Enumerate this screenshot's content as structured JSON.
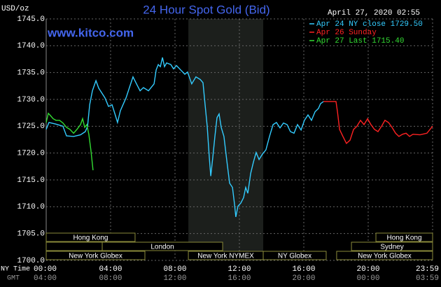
{
  "chart_data": {
    "type": "line",
    "title": "24 Hour Spot Gold (Bid)",
    "website": "www.kitco.com",
    "y_label": "USD/oz",
    "timestamp": "April 27, 2020 02:55",
    "x_row_label": "NY Time",
    "x2_row_label": "GMT",
    "background": "#000000",
    "title_color": "#4466ee",
    "grid": true,
    "xlim": [
      0,
      24
    ],
    "ylim": [
      1700,
      1745
    ],
    "yticks": [
      {
        "value": 1700,
        "label": "1700.0"
      },
      {
        "value": 1705,
        "label": "1705.0"
      },
      {
        "value": 1710,
        "label": "1710.0"
      },
      {
        "value": 1715,
        "label": "1715.0"
      },
      {
        "value": 1720,
        "label": "1720.0"
      },
      {
        "value": 1725,
        "label": "1725.0"
      },
      {
        "value": 1730,
        "label": "1730.0"
      },
      {
        "value": 1735,
        "label": "1735.0"
      },
      {
        "value": 1740,
        "label": "1740.0"
      },
      {
        "value": 1745,
        "label": "1745.0"
      }
    ],
    "xticks": [
      {
        "value": 0,
        "label": "00:00"
      },
      {
        "value": 4,
        "label": "04:00"
      },
      {
        "value": 8,
        "label": "08:00"
      },
      {
        "value": 12,
        "label": "12:00"
      },
      {
        "value": 16,
        "label": "16:00"
      },
      {
        "value": 20,
        "label": "20:00"
      },
      {
        "value": 24,
        "label": "23:59"
      }
    ],
    "x2ticks": [
      {
        "value": 0,
        "label": "04:00"
      },
      {
        "value": 4,
        "label": "08:00"
      },
      {
        "value": 8,
        "label": "12:00"
      },
      {
        "value": 12,
        "label": "16:00"
      },
      {
        "value": 16,
        "label": "20:00"
      },
      {
        "value": 20,
        "label": "00:00"
      },
      {
        "value": 24,
        "label": "03:59"
      }
    ],
    "sessions": [
      {
        "label": "Hong Kong",
        "start": 0,
        "end": 5.52
      },
      {
        "label": "London",
        "start": 3.48,
        "end": 10.96
      },
      {
        "label": "New York Globex",
        "start": 0,
        "end": 6.13
      },
      {
        "label": "New York NYMEX",
        "start": 8.83,
        "end": 13.48
      },
      {
        "label": "NY Globex",
        "start": 13.48,
        "end": 17.39
      },
      {
        "label": "Hong Kong",
        "start": 20.48,
        "end": 24
      },
      {
        "label": "Sydney",
        "start": 18.96,
        "end": 24
      },
      {
        "label": "New York Globex",
        "start": 18.04,
        "end": 24
      }
    ],
    "series": [
      {
        "name": "Apr 24 NY close 1729.50",
        "color": "#33ccff",
        "x": [
          0.0,
          0.17,
          0.61,
          1.04,
          1.26,
          1.7,
          2.13,
          2.43,
          2.57,
          2.7,
          2.87,
          3.09,
          3.26,
          3.65,
          3.87,
          4.09,
          4.3,
          4.43,
          4.61,
          4.96,
          5.17,
          5.39,
          5.61,
          5.83,
          6.04,
          6.35,
          6.7,
          6.83,
          6.96,
          7.09,
          7.22,
          7.35,
          7.48,
          7.74,
          7.91,
          8.09,
          8.35,
          8.61,
          8.78,
          9.04,
          9.3,
          9.57,
          9.74,
          9.87,
          10.0,
          10.13,
          10.22,
          10.35,
          10.48,
          10.61,
          10.74,
          10.87,
          11.04,
          11.22,
          11.39,
          11.57,
          11.7,
          11.78,
          11.91,
          12.09,
          12.26,
          12.39,
          12.52,
          12.7,
          12.87,
          13.04,
          13.22,
          13.43,
          13.65,
          13.87,
          14.09,
          14.3,
          14.52,
          14.74,
          14.96,
          15.17,
          15.39,
          15.61,
          15.83,
          16.04,
          16.26,
          16.48,
          16.7,
          16.91,
          17.04,
          17.22
        ],
        "values": [
          1724.4,
          1725.7,
          1725.4,
          1725.0,
          1723.2,
          1723.1,
          1723.4,
          1724.0,
          1725.0,
          1729.0,
          1731.6,
          1733.5,
          1732.1,
          1730.3,
          1728.7,
          1729.0,
          1727.0,
          1725.7,
          1727.9,
          1730.3,
          1732.2,
          1734.2,
          1732.9,
          1731.6,
          1732.2,
          1731.6,
          1732.9,
          1735.5,
          1736.5,
          1736.1,
          1737.8,
          1736.1,
          1736.8,
          1736.5,
          1735.7,
          1736.3,
          1735.5,
          1734.7,
          1735.1,
          1732.9,
          1734.2,
          1733.7,
          1733.1,
          1729.0,
          1725.0,
          1719.2,
          1715.7,
          1719.2,
          1723.1,
          1726.6,
          1727.3,
          1724.8,
          1723.1,
          1718.5,
          1714.4,
          1713.6,
          1710.4,
          1708.1,
          1710.1,
          1710.7,
          1711.7,
          1713.6,
          1712.5,
          1716.2,
          1718.3,
          1720.1,
          1718.8,
          1719.8,
          1720.6,
          1723.1,
          1725.3,
          1725.7,
          1724.7,
          1725.6,
          1725.3,
          1724.0,
          1723.7,
          1725.3,
          1724.3,
          1726.1,
          1727.1,
          1726.1,
          1727.7,
          1728.3,
          1729.2,
          1729.6
        ]
      },
      {
        "name": "Apr 26 Sunday",
        "color": "#ff2222",
        "x": [
          17.22,
          18.0,
          18.09,
          18.22,
          18.43,
          18.65,
          18.87,
          19.09,
          19.3,
          19.52,
          19.74,
          19.96,
          20.17,
          20.39,
          20.61,
          20.83,
          21.04,
          21.26,
          21.48,
          21.7,
          21.91,
          22.13,
          22.35,
          22.57,
          22.78,
          23.22,
          23.65,
          24.0
        ],
        "values": [
          1729.6,
          1729.6,
          1727.7,
          1724.4,
          1723.1,
          1721.8,
          1722.4,
          1724.4,
          1725.0,
          1726.1,
          1725.3,
          1726.4,
          1725.3,
          1724.4,
          1724.0,
          1725.0,
          1726.1,
          1725.7,
          1724.8,
          1723.7,
          1723.1,
          1723.5,
          1723.7,
          1723.1,
          1723.5,
          1723.4,
          1723.7,
          1725.0
        ]
      },
      {
        "name": "Apr 27 Last 1715.40",
        "color": "#33dd33",
        "x": [
          0.0,
          0.13,
          0.26,
          0.43,
          0.61,
          0.83,
          1.04,
          1.26,
          1.48,
          1.7,
          1.91,
          2.13,
          2.26,
          2.39,
          2.52,
          2.65,
          2.78,
          2.91
        ],
        "values": [
          1725.7,
          1727.4,
          1727.0,
          1726.4,
          1726.1,
          1726.1,
          1725.6,
          1724.8,
          1724.4,
          1723.7,
          1724.4,
          1725.3,
          1726.4,
          1724.8,
          1725.3,
          1723.5,
          1720.5,
          1716.8
        ]
      }
    ]
  }
}
